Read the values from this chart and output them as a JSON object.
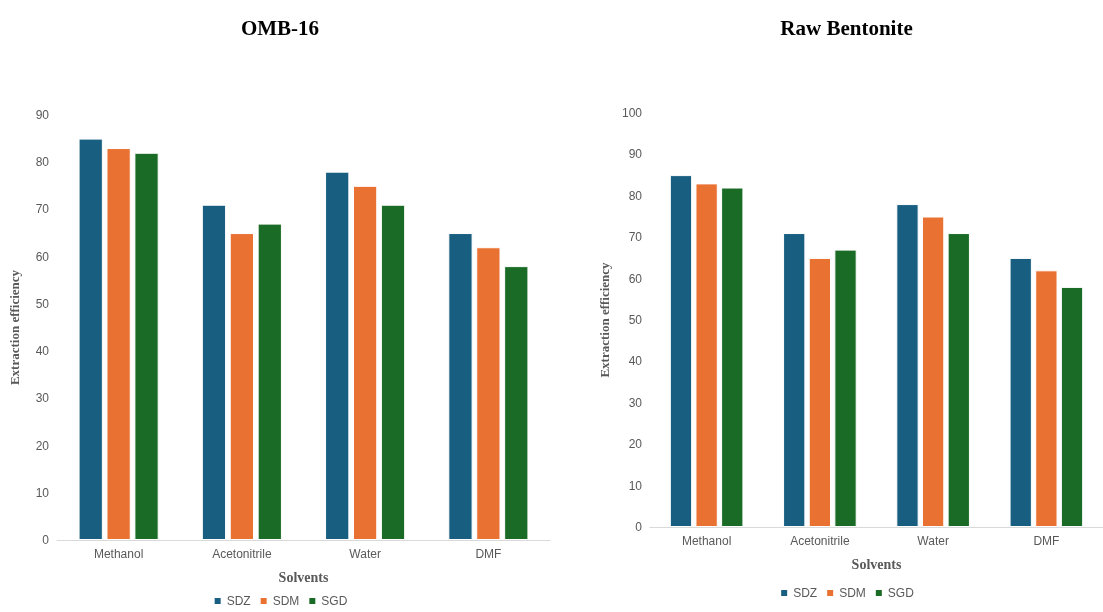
{
  "chart_data": [
    {
      "type": "bar",
      "title": "OMB-16",
      "xlabel": "Solvents",
      "ylabel": "Extraction efficiency",
      "categories": [
        "Methanol",
        "Acetonitrile",
        "Water",
        "DMF"
      ],
      "series": [
        {
          "name": "SDZ",
          "color": "#175e80",
          "values": [
            85,
            71,
            78,
            65
          ]
        },
        {
          "name": "SDM",
          "color": "#e97132",
          "values": [
            83,
            65,
            75,
            62
          ]
        },
        {
          "name": "SGD",
          "color": "#1a6b25",
          "values": [
            82,
            67,
            71,
            58
          ]
        }
      ],
      "ylim": [
        0,
        90
      ],
      "yticks": [
        0,
        10,
        20,
        30,
        40,
        50,
        60,
        70,
        80,
        90
      ],
      "grid": false,
      "legend": "bottom"
    },
    {
      "type": "bar",
      "title": "Raw Bentonite",
      "xlabel": "Solvents",
      "ylabel": "Extraction efficiency",
      "categories": [
        "Methanol",
        "Acetonitrile",
        "Water",
        "DMF"
      ],
      "series": [
        {
          "name": "SDZ",
          "color": "#175e80",
          "values": [
            85,
            71,
            78,
            65
          ]
        },
        {
          "name": "SDM",
          "color": "#e97132",
          "values": [
            83,
            65,
            75,
            62
          ]
        },
        {
          "name": "SGD",
          "color": "#1a6b25",
          "values": [
            82,
            67,
            71,
            58
          ]
        }
      ],
      "ylim": [
        0,
        100
      ],
      "yticks": [
        0,
        10,
        20,
        30,
        40,
        50,
        60,
        70,
        80,
        90,
        100
      ],
      "grid": false,
      "legend": "bottom"
    }
  ]
}
